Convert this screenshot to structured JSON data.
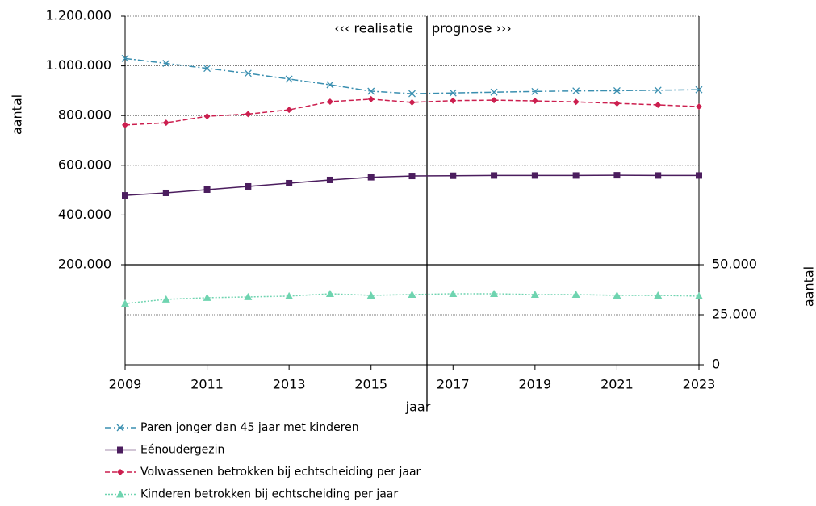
{
  "chart_data": {
    "type": "line",
    "x_label": "jaar",
    "y_label": "aantal",
    "y2_label": "aantal",
    "annotations": [
      "‹‹‹ realisatie",
      "prognose ›››"
    ],
    "x": [
      2009,
      2010,
      2011,
      2012,
      2013,
      2014,
      2015,
      2016,
      2017,
      2018,
      2019,
      2020,
      2021,
      2022,
      2023
    ],
    "xlim": [
      2009,
      2023
    ],
    "xticks": [
      2009,
      2011,
      2013,
      2015,
      2017,
      2019,
      2021,
      2023
    ],
    "ylim": [
      200000,
      1200000
    ],
    "yticks": [
      {
        "value": 200000,
        "label": "200.000"
      },
      {
        "value": 400000,
        "label": "400.000"
      },
      {
        "value": 600000,
        "label": "600.000"
      },
      {
        "value": 800000,
        "label": "800.000"
      },
      {
        "value": 1000000,
        "label": "1.000.000"
      },
      {
        "value": 1200000,
        "label": "1.200.000"
      }
    ],
    "y2lim": [
      0,
      50000
    ],
    "y2ticks": [
      0,
      {
        "value": 25000,
        "label": "25.000"
      },
      {
        "value": 50000,
        "label": "50.000"
      }
    ],
    "grid": true,
    "series": [
      {
        "name": "Paren jonger dan 45 jaar met kinderen",
        "color": "#3a8fb0",
        "dash": "8 3 2 3",
        "marker": "x",
        "values": [
          1030000,
          1010000,
          990000,
          970000,
          947000,
          924000,
          898000,
          888000,
          891000,
          894000,
          897000,
          899000,
          900000,
          902000,
          904000
        ]
      },
      {
        "name": "Eénoudergezin",
        "color": "#4b1d5e",
        "dash": "none",
        "marker": "square",
        "values": [
          479000,
          489000,
          502000,
          515000,
          528000,
          541000,
          552000,
          557000,
          558000,
          559000,
          559000,
          559000,
          560000,
          559000,
          559000
        ]
      },
      {
        "name": "Volwassenen betrokken bij echtscheiding per jaar",
        "color": "#cc1f4f",
        "dash": "6 3",
        "marker": "diamond",
        "values": [
          762000,
          771000,
          797000,
          806000,
          823000,
          856000,
          866000,
          853000,
          860000,
          862000,
          859000,
          855000,
          849000,
          843000,
          836000
        ]
      },
      {
        "name": "Kinderen betrokken bij echtscheiding per jaar",
        "color": "#6fd4b0",
        "dash": "2 2",
        "marker": "triangle",
        "axis": "y2",
        "values": [
          30600,
          32700,
          33500,
          33900,
          34300,
          35500,
          34700,
          35100,
          35500,
          35500,
          35100,
          35100,
          34700,
          34700,
          34300
        ]
      }
    ]
  }
}
